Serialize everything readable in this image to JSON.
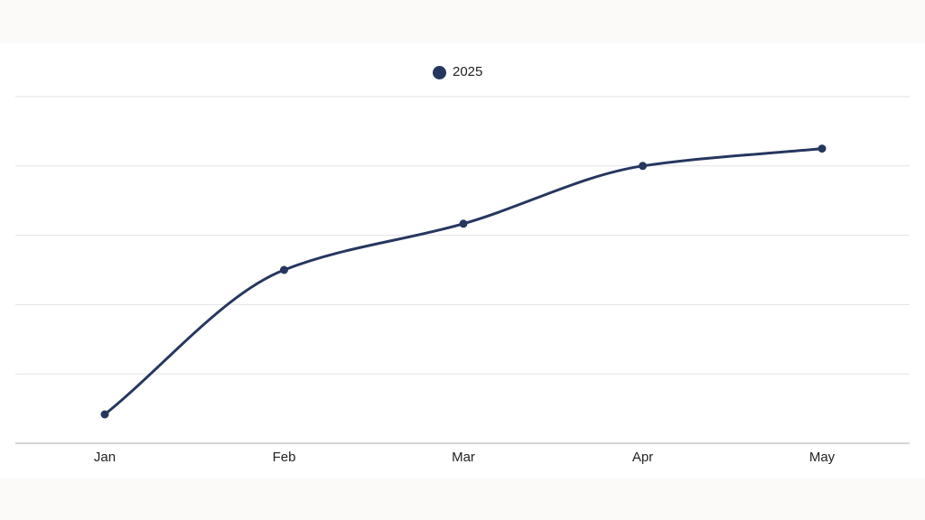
{
  "chart_data": {
    "type": "line",
    "categories": [
      "Jan",
      "Feb",
      "Mar",
      "Apr",
      "May"
    ],
    "series": [
      {
        "name": "2025",
        "values": [
          5,
          30,
          38,
          48,
          51
        ],
        "color": "#26375f"
      }
    ],
    "title": "",
    "xlabel": "",
    "ylabel": "",
    "ylim": [
      0,
      60
    ],
    "y_gridlines": 5,
    "y_tick_labels_shown": false,
    "grid": true,
    "smooth": true,
    "legend_position": "top-center"
  },
  "colors": {
    "series": "#26375f",
    "grid": "#e3e3e3",
    "axis": "#c8c8c8",
    "text": "#222222"
  }
}
